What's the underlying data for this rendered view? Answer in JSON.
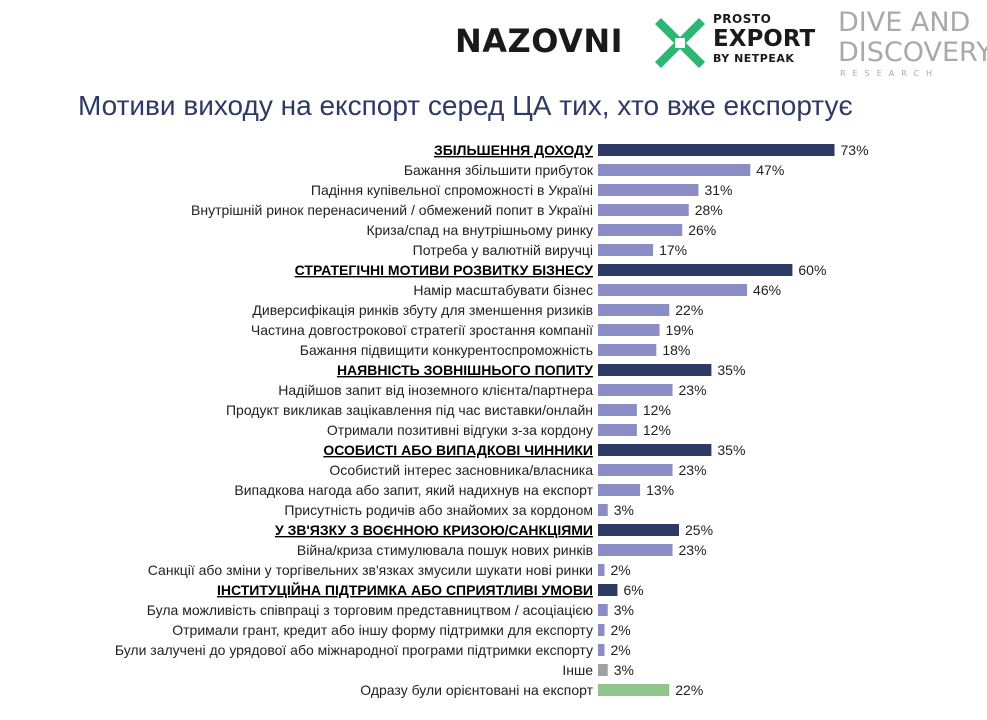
{
  "logos": {
    "nazovni": "NAZOVNI",
    "prosto_line1": "PROSTO",
    "prosto_line2": "EXPORT",
    "prosto_line3": "BY NETPEAK",
    "dive_line1": "DIVE AND",
    "dive_line2": "DISCOVERY",
    "dive_line3": "RESEARCH"
  },
  "title": "Мотиви виходу на експорт серед ЦА тих, хто вже експортує",
  "chart_data": {
    "type": "bar",
    "orientation": "horizontal",
    "unit": "%",
    "xlim": [
      0,
      100
    ],
    "colors": {
      "category": "#2e3a66",
      "item": "#8b8dc4",
      "other": "#a0a0a0",
      "direct": "#8fc48a"
    },
    "items": [
      {
        "label": "ЗБІЛЬШЕННЯ ДОХОДУ",
        "value": 73,
        "kind": "category"
      },
      {
        "label": "Бажання збільшити прибуток",
        "value": 47,
        "kind": "item"
      },
      {
        "label": "Падіння купівельної спроможності в Україні",
        "value": 31,
        "kind": "item"
      },
      {
        "label": "Внутрішній ринок перенасичений / обмежений попит в Україні",
        "value": 28,
        "kind": "item"
      },
      {
        "label": "Криза/спад на внутрішньому ринку",
        "value": 26,
        "kind": "item"
      },
      {
        "label": "Потреба у валютній виручці",
        "value": 17,
        "kind": "item"
      },
      {
        "label": "СТРАТЕГІЧНІ МОТИВИ РОЗВИТКУ БІЗНЕСУ",
        "value": 60,
        "kind": "category"
      },
      {
        "label": "Намір масштабувати бізнес",
        "value": 46,
        "kind": "item"
      },
      {
        "label": "Диверсифікація ринків збуту для зменшення ризиків",
        "value": 22,
        "kind": "item"
      },
      {
        "label": "Частина довгострокової стратегії зростання компанії",
        "value": 19,
        "kind": "item"
      },
      {
        "label": "Бажання підвищити конкурентоспроможність",
        "value": 18,
        "kind": "item"
      },
      {
        "label": "НАЯВНІСТЬ ЗОВНІШНЬОГО ПОПИТУ",
        "value": 35,
        "kind": "category"
      },
      {
        "label": "Надійшов запит від іноземного клієнта/партнера",
        "value": 23,
        "kind": "item"
      },
      {
        "label": "Продукт викликав зацікавлення під час виставки/онлайн",
        "value": 12,
        "kind": "item"
      },
      {
        "label": "Отримали позитивні відгуки з-за кордону",
        "value": 12,
        "kind": "item"
      },
      {
        "label": "ОСОБИСТІ АБО ВИПАДКОВІ ЧИННИКИ",
        "value": 35,
        "kind": "category"
      },
      {
        "label": "Особистий інтерес засновника/власника",
        "value": 23,
        "kind": "item"
      },
      {
        "label": "Випадкова нагода або запит, який надихнув на експорт",
        "value": 13,
        "kind": "item"
      },
      {
        "label": "Присутність родичів або знайомих за кордоном",
        "value": 3,
        "kind": "item"
      },
      {
        "label": "У ЗВ'ЯЗКУ З ВОЄННОЮ КРИЗОЮ/САНКЦІЯМИ",
        "value": 25,
        "kind": "category"
      },
      {
        "label": "Війна/криза стимулювала пошук нових ринків",
        "value": 23,
        "kind": "item"
      },
      {
        "label": "Санкції або зміни у торгівельних зв'язках змусили шукати нові ринки",
        "value": 2,
        "kind": "item"
      },
      {
        "label": "ІНСТИТУЦІЙНА ПІДТРИМКА АБО СПРИЯТЛИВІ УМОВИ",
        "value": 6,
        "kind": "category"
      },
      {
        "label": "Була можливість співпраці з торговим представництвом / асоціацією",
        "value": 3,
        "kind": "item"
      },
      {
        "label": "Отримали грант, кредит або іншу форму підтримки для експорту",
        "value": 2,
        "kind": "item"
      },
      {
        "label": "Були залучені до урядової або міжнародної програми підтримки експорту",
        "value": 2,
        "kind": "item"
      },
      {
        "label": "Інше",
        "value": 3,
        "kind": "other"
      },
      {
        "label": "Одразу були орієнтовані на експорт",
        "value": 22,
        "kind": "direct"
      }
    ]
  }
}
